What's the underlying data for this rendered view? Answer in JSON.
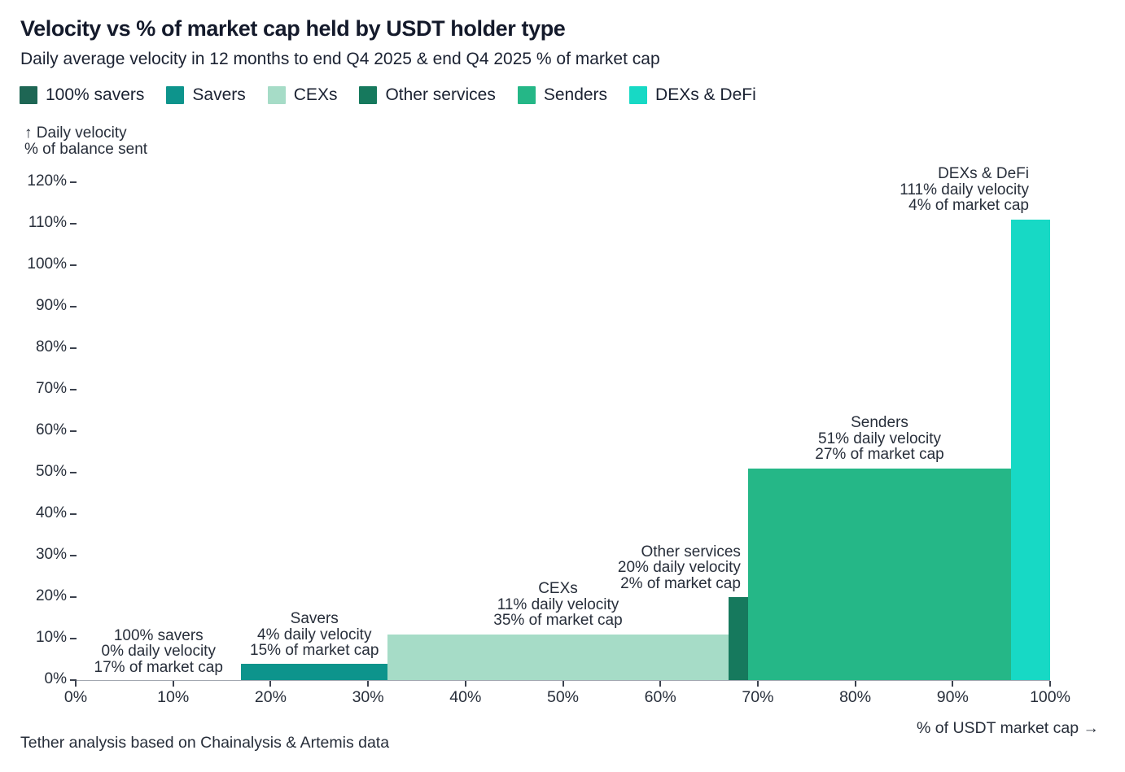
{
  "header": {
    "title": "Velocity vs % of market cap held by USDT holder type",
    "subtitle": "Daily average velocity in 12 months to end Q4 2025 & end Q4 2025 % of market cap"
  },
  "legend": {
    "items": [
      {
        "label": "100% savers",
        "color": "#1e6654"
      },
      {
        "label": "Savers",
        "color": "#0d948c"
      },
      {
        "label": "CEXs",
        "color": "#a6dcc7"
      },
      {
        "label": "Other services",
        "color": "#16795d"
      },
      {
        "label": "Senders",
        "color": "#25b787"
      },
      {
        "label": "DEXs & DeFi",
        "color": "#17d9c5"
      }
    ]
  },
  "chart_data": {
    "type": "bar",
    "variant": "variable-width bars: width = % of USDT market cap held, height = daily velocity %",
    "title": "Velocity vs % of market cap held by USDT holder type",
    "y_axis_label": [
      "↑ Daily velocity",
      "% of balance sent"
    ],
    "x_axis_label": "% of USDT market cap →",
    "xlim": [
      0,
      100
    ],
    "ylim": [
      0,
      120
    ],
    "grid": false,
    "legend_position": "top",
    "x_ticks": [
      "0%",
      "10%",
      "20%",
      "30%",
      "40%",
      "50%",
      "60%",
      "70%",
      "80%",
      "90%",
      "100%"
    ],
    "y_ticks": [
      "0%",
      "10%",
      "20%",
      "30%",
      "40%",
      "50%",
      "60%",
      "70%",
      "80%",
      "90%",
      "100%",
      "110%",
      "120%"
    ],
    "segments": [
      {
        "name": "100% savers",
        "daily_velocity_pct": 0,
        "market_cap_pct": 17,
        "x_start_pct": 0,
        "x_end_pct": 17,
        "color": "#1e6654",
        "annotation": [
          "100% savers",
          "0% daily velocity",
          "17% of market cap"
        ]
      },
      {
        "name": "Savers",
        "daily_velocity_pct": 4,
        "market_cap_pct": 15,
        "x_start_pct": 17,
        "x_end_pct": 32,
        "color": "#0d948c",
        "annotation": [
          "Savers",
          "4% daily velocity",
          "15% of market cap"
        ]
      },
      {
        "name": "CEXs",
        "daily_velocity_pct": 11,
        "market_cap_pct": 35,
        "x_start_pct": 32,
        "x_end_pct": 67,
        "color": "#a6dcc7",
        "annotation": [
          "CEXs",
          "11% daily velocity",
          "35% of market cap"
        ]
      },
      {
        "name": "Other services",
        "daily_velocity_pct": 20,
        "market_cap_pct": 2,
        "x_start_pct": 67,
        "x_end_pct": 69,
        "color": "#16795d",
        "annotation": [
          "Other services",
          "20% daily velocity",
          "2% of market cap"
        ]
      },
      {
        "name": "Senders",
        "daily_velocity_pct": 51,
        "market_cap_pct": 27,
        "x_start_pct": 69,
        "x_end_pct": 96,
        "color": "#25b787",
        "annotation": [
          "Senders",
          "51% daily velocity",
          "27% of market cap"
        ]
      },
      {
        "name": "DEXs & DeFi",
        "daily_velocity_pct": 111,
        "market_cap_pct": 4,
        "x_start_pct": 96,
        "x_end_pct": 100,
        "color": "#17d9c5",
        "annotation": [
          "DEXs & DeFi",
          "111% daily velocity",
          "4% of market cap"
        ]
      }
    ]
  },
  "footer": {
    "source": "Tether analysis based on Chainalysis & Artemis data"
  }
}
